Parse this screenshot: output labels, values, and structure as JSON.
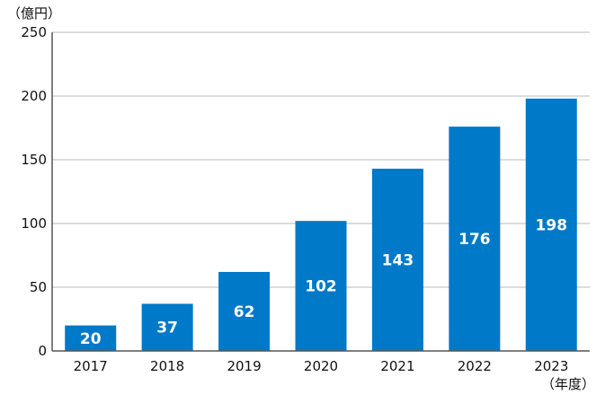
{
  "chart_data": {
    "type": "bar",
    "title": "",
    "ylabel": "（億円）",
    "xlabel": "（年度）",
    "categories": [
      "2017",
      "2018",
      "2019",
      "2020",
      "2021",
      "2022",
      "2023"
    ],
    "values": [
      20,
      37,
      62,
      102,
      143,
      176,
      198
    ],
    "data_labels": [
      "20",
      "37",
      "62",
      "102",
      "143",
      "176",
      "198"
    ],
    "ylim": [
      0,
      250
    ],
    "yticks": [
      0,
      50,
      100,
      150,
      200,
      250
    ],
    "ytick_labels": [
      "0",
      "50",
      "100",
      "150",
      "200",
      "250"
    ],
    "grid": true,
    "bar_color": "#0079c8",
    "grid_color": "#c8c8c8",
    "axis_color": "#555555"
  }
}
